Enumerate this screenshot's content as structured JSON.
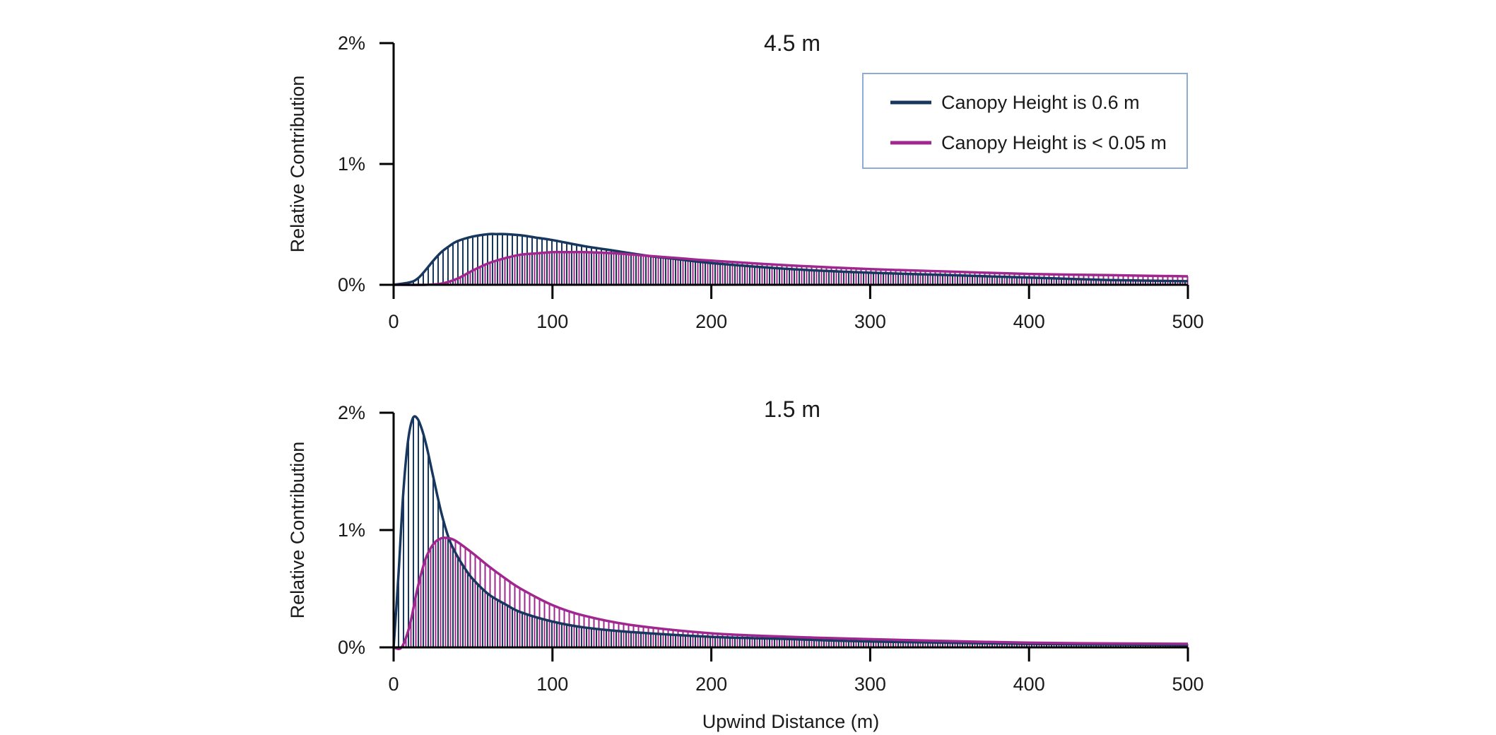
{
  "chart_data": [
    {
      "type": "area",
      "title": "4.5 m",
      "xlabel": "",
      "ylabel": "Relative Contribution",
      "xlim": [
        0,
        500
      ],
      "ylim": [
        0,
        2
      ],
      "xticks": [
        "0",
        "100",
        "200",
        "300",
        "400",
        "500"
      ],
      "yticks": [
        "0%",
        "1%",
        "2%"
      ],
      "legend": {
        "placement": "top-right",
        "entries": [
          "Canopy Height is 0.6 m",
          "Canopy Height is < 0.05 m"
        ]
      },
      "series": [
        {
          "name": "Canopy Height is 0.6 m",
          "color": "#17375e",
          "x": [
            0,
            10,
            15,
            20,
            25,
            30,
            35,
            40,
            50,
            60,
            65,
            70,
            80,
            90,
            100,
            120,
            140,
            160,
            180,
            200,
            250,
            300,
            350,
            400,
            450,
            500
          ],
          "y": [
            0,
            0.02,
            0.05,
            0.12,
            0.2,
            0.27,
            0.32,
            0.36,
            0.4,
            0.42,
            0.42,
            0.42,
            0.41,
            0.39,
            0.37,
            0.32,
            0.28,
            0.24,
            0.21,
            0.18,
            0.13,
            0.1,
            0.08,
            0.06,
            0.04,
            0.03
          ]
        },
        {
          "name": "Canopy Height is < 0.05 m",
          "color": "#a0278f",
          "x": [
            0,
            20,
            30,
            40,
            50,
            60,
            70,
            80,
            90,
            100,
            110,
            120,
            140,
            160,
            180,
            200,
            250,
            300,
            350,
            400,
            450,
            500
          ],
          "y": [
            0,
            0,
            0.01,
            0.05,
            0.12,
            0.18,
            0.22,
            0.25,
            0.26,
            0.27,
            0.27,
            0.27,
            0.26,
            0.24,
            0.22,
            0.2,
            0.16,
            0.13,
            0.11,
            0.09,
            0.08,
            0.07
          ]
        }
      ]
    },
    {
      "type": "area",
      "title": "1.5 m",
      "xlabel": "Upwind Distance (m)",
      "ylabel": "Relative Contribution",
      "xlim": [
        0,
        500
      ],
      "ylim": [
        0,
        2
      ],
      "xticks": [
        "0",
        "100",
        "200",
        "300",
        "400",
        "500"
      ],
      "yticks": [
        "0%",
        "1%",
        "2%"
      ],
      "series": [
        {
          "name": "Canopy Height is 0.6 m",
          "color": "#17375e",
          "x": [
            0,
            3,
            6,
            9,
            12,
            15,
            18,
            21,
            25,
            30,
            35,
            40,
            45,
            50,
            60,
            70,
            80,
            100,
            120,
            150,
            200,
            250,
            300,
            400,
            500
          ],
          "y": [
            0,
            0.6,
            1.3,
            1.75,
            1.95,
            1.95,
            1.85,
            1.7,
            1.45,
            1.15,
            0.92,
            0.78,
            0.67,
            0.58,
            0.45,
            0.37,
            0.3,
            0.22,
            0.17,
            0.13,
            0.09,
            0.07,
            0.05,
            0.03,
            0.02
          ]
        },
        {
          "name": "Canopy Height is < 0.05 m",
          "color": "#a0278f",
          "x": [
            0,
            5,
            10,
            15,
            20,
            25,
            30,
            35,
            40,
            50,
            60,
            70,
            80,
            100,
            120,
            150,
            200,
            250,
            300,
            400,
            500
          ],
          "y": [
            0,
            0,
            0.18,
            0.5,
            0.75,
            0.88,
            0.93,
            0.93,
            0.9,
            0.8,
            0.69,
            0.59,
            0.5,
            0.36,
            0.27,
            0.19,
            0.12,
            0.09,
            0.07,
            0.04,
            0.03
          ]
        }
      ]
    }
  ]
}
